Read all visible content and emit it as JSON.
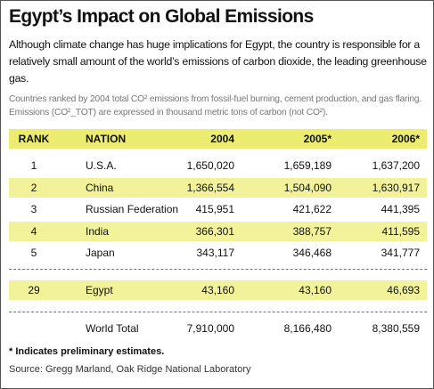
{
  "header": {
    "title": "Egypt’s Impact on Global Emissions",
    "subtitle": "Although climate change has huge implications for Egypt, the country is responsible for a relatively small amount of the world’s emissions of carbon dioxide, the leading greenhouse gas.",
    "note": "Countries ranked by 2004 total CO² emissions from fossil-fuel burning, cement production, and gas flaring. Emissions (CO²_TOT) are expressed in thousand metric tons of carbon (not CO²)."
  },
  "table": {
    "columns": [
      "RANK",
      "NATION",
      "2004",
      "2005*",
      "2006*"
    ],
    "rows": [
      [
        "1",
        "U.S.A.",
        "1,650,020",
        "1,659,189",
        "1,637,200"
      ],
      [
        "2",
        "China",
        "1,366,554",
        "1,504,090",
        "1,630,917"
      ],
      [
        "3",
        "Russian Federation",
        "415,951",
        "421,622",
        "441,395"
      ],
      [
        "4",
        "India",
        "366,301",
        "388,757",
        "411,595"
      ],
      [
        "5",
        "Japan",
        "343,117",
        "346,468",
        "341,777"
      ]
    ],
    "egypt_row": [
      "29",
      "Egypt",
      "43,160",
      "43,160",
      "46,693"
    ],
    "total_row": [
      "World Total",
      "7,910,000",
      "8,166,480",
      "8,380,559"
    ]
  },
  "footer": {
    "footnote": "* Indicates preliminary estimates.",
    "source": "Source: Gregg Marland, Oak Ridge National Laboratory"
  }
}
